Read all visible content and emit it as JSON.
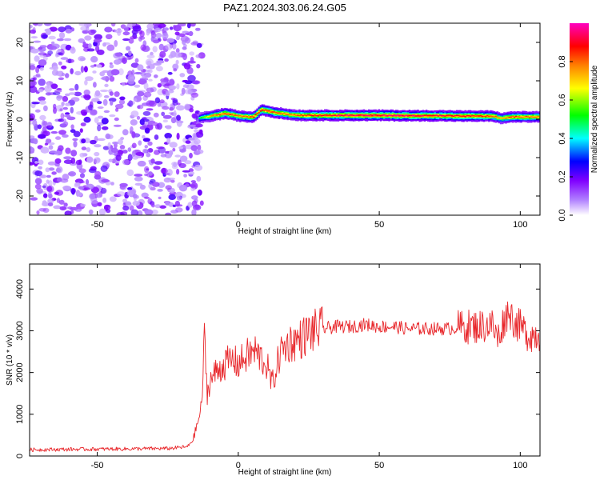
{
  "title": "PAZ1.2024.303.06.24.G05",
  "chart_data": [
    {
      "type": "heatmap",
      "xlabel": "Height of straight line (km)",
      "ylabel": "Frequency (Hz)",
      "xlim": [
        -74,
        107
      ],
      "ylim": [
        -25,
        25
      ],
      "xticks": [
        -50,
        0,
        50,
        100
      ],
      "yticks": [
        -20,
        -10,
        0,
        10,
        20
      ],
      "colorbar": {
        "label": "Normalized spectral amplitude",
        "range": [
          0,
          1
        ],
        "ticks": [
          "0.0",
          "0.2",
          "0.4",
          "0.6",
          "0.8"
        ],
        "colormap": [
          "#ffffff",
          "#8000ff",
          "#0000ff",
          "#00ffff",
          "#00ff00",
          "#ffff00",
          "#ff8000",
          "#ff0000",
          "#ff00ff"
        ]
      },
      "noise_region_x": [
        -74,
        -14
      ],
      "ridge": {
        "x": [
          -14,
          -10,
          -5,
          0,
          5,
          8,
          12,
          18,
          22,
          30,
          40,
          50,
          60,
          70,
          80,
          90,
          93,
          97,
          107
        ],
        "frequency": [
          0.3,
          0.8,
          1.5,
          0.8,
          0.5,
          2.5,
          1.8,
          1.2,
          1.0,
          1.0,
          1.0,
          1.0,
          0.9,
          0.9,
          0.8,
          0.8,
          0.2,
          0.6,
          0.6
        ],
        "amplitude": [
          0.5,
          0.75,
          0.85,
          0.8,
          0.85,
          0.9,
          0.85,
          0.8,
          0.85,
          0.9,
          0.95,
          0.95,
          0.95,
          0.92,
          0.9,
          0.85,
          0.75,
          0.85,
          0.8
        ]
      }
    },
    {
      "type": "line",
      "xlabel": "Height of straight line (km)",
      "ylabel": "SNR (10 * v/v)",
      "xlim": [
        -74,
        107
      ],
      "ylim": [
        0,
        4600
      ],
      "xticks": [
        -50,
        0,
        50,
        100
      ],
      "yticks": [
        0,
        1000,
        2000,
        3000,
        4000
      ],
      "color": "#e8262a",
      "x": [
        -74,
        -60,
        -40,
        -25,
        -18,
        -16,
        -14,
        -13,
        -12,
        -11,
        -10,
        -8,
        -5,
        -2,
        0,
        3,
        6,
        10,
        12,
        15,
        18,
        22,
        25,
        30,
        35,
        40,
        45,
        50,
        55,
        60,
        65,
        70,
        75,
        80,
        85,
        90,
        92,
        94,
        96,
        98,
        100,
        103,
        107
      ],
      "snr": [
        150,
        160,
        170,
        180,
        220,
        400,
        900,
        1200,
        2800,
        1500,
        1800,
        2000,
        2200,
        2300,
        2200,
        2400,
        2500,
        2200,
        1700,
        2500,
        2700,
        2800,
        2950,
        3050,
        3100,
        3100,
        3150,
        3100,
        3100,
        3050,
        3050,
        3050,
        3050,
        3100,
        3100,
        3150,
        2800,
        3200,
        3500,
        3200,
        3100,
        2900,
        2900
      ]
    }
  ]
}
